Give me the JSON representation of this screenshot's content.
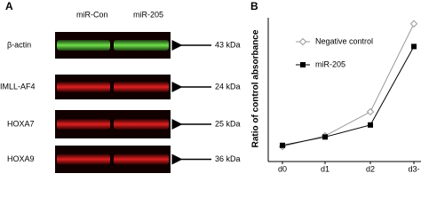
{
  "panel_a": {
    "label": "A",
    "columns": [
      "miR-Con",
      "miR-205"
    ],
    "rows": [
      {
        "name": "β-actin",
        "size": "43 kDa"
      },
      {
        "name": "IMLL-AF4",
        "size": "24 kDa"
      },
      {
        "name": "HOXA7",
        "size": "25 kDa"
      },
      {
        "name": "HOXA9",
        "size": "36 kDa"
      }
    ]
  },
  "chart_data": {
    "type": "line",
    "panel_label": "B",
    "y_label": "Ratio of control absorbance",
    "categories": [
      "d0",
      "d1",
      "d2",
      "d3-"
    ],
    "series": [
      {
        "name": "Negative control",
        "color": "#9a9a9a",
        "marker": "diamond",
        "values": [
          0.55,
          0.73,
          1.13,
          2.6
        ]
      },
      {
        "name": "miR-205",
        "color": "#000000",
        "marker": "square",
        "values": [
          0.57,
          0.71,
          0.91,
          2.22
        ]
      }
    ],
    "ylim": [
      0.3,
      2.7
    ]
  }
}
